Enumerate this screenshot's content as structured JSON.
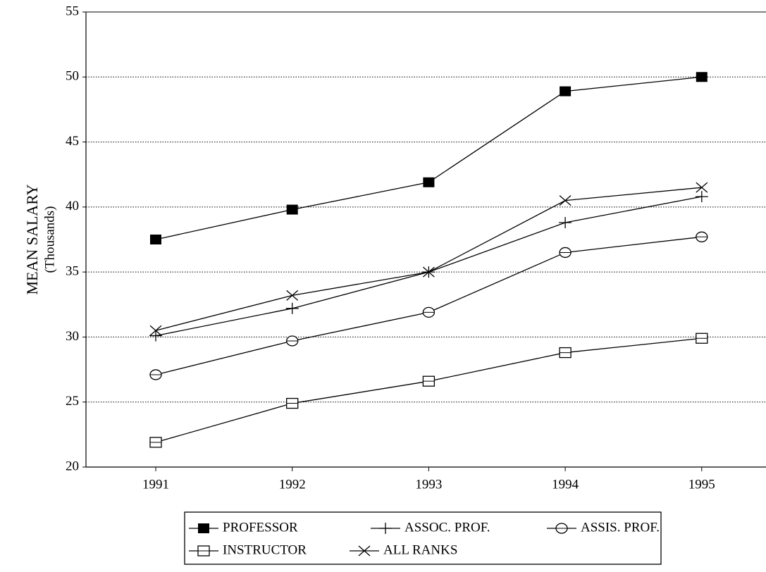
{
  "chart_data": {
    "type": "line",
    "y_label": "MEAN SALARY",
    "y_sublabel": "(Thousands)",
    "categories": [
      "1991",
      "1992",
      "1993",
      "1994",
      "1995"
    ],
    "series": [
      {
        "name": "PROFESSOR",
        "color": "#000000",
        "marker": "square-filled",
        "values": [
          37.5,
          39.8,
          41.9,
          48.9,
          50.0
        ]
      },
      {
        "name": "ASSOC. PROF.",
        "color": "#000000",
        "marker": "plus",
        "values": [
          30.1,
          32.2,
          35.0,
          38.8,
          40.8
        ]
      },
      {
        "name": "ASSIS. PROF.",
        "color": "#000000",
        "marker": "circle-line",
        "values": [
          27.1,
          29.7,
          31.9,
          36.5,
          37.7
        ]
      },
      {
        "name": "INSTRUCTOR",
        "color": "#000000",
        "marker": "square-line",
        "values": [
          21.9,
          24.9,
          26.6,
          28.8,
          29.9
        ]
      },
      {
        "name": "ALL RANKS",
        "color": "#000000",
        "marker": "cross",
        "values": [
          30.5,
          33.2,
          35.0,
          40.5,
          41.5
        ]
      }
    ],
    "ylim": [
      20,
      55
    ],
    "yticks": [
      20,
      25,
      30,
      35,
      40,
      45,
      50,
      55
    ],
    "grid": true,
    "legend": "bottom"
  }
}
